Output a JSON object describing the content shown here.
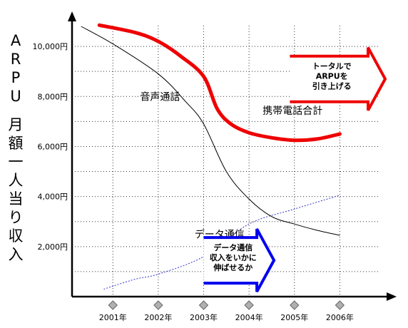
{
  "chart_data": {
    "type": "line",
    "ylabel_chars": [
      "A",
      "R",
      "P",
      "U",
      "",
      "月",
      "額",
      "一",
      "人",
      "当",
      "り",
      "収",
      "入"
    ],
    "ylim": [
      0,
      11000
    ],
    "y_ticks": [
      {
        "value": 2000,
        "label": "2,000円"
      },
      {
        "value": 4000,
        "label": "4,000円"
      },
      {
        "value": 6000,
        "label": "6,000円"
      },
      {
        "value": 8000,
        "label": "8,000円"
      },
      {
        "value": 10000,
        "label": "10,000円"
      }
    ],
    "minor_grid_values": [
      1000,
      3000,
      5000,
      7000,
      9000
    ],
    "x_ticks": [
      {
        "value": 2001,
        "label": "2001年"
      },
      {
        "value": 2002,
        "label": "2002年"
      },
      {
        "value": 2003,
        "label": "2003年"
      },
      {
        "value": 2004,
        "label": "2004年"
      },
      {
        "value": 2005,
        "label": "2005年"
      },
      {
        "value": 2006,
        "label": "2006年"
      }
    ],
    "xlim": [
      2000.1,
      2007.0
    ],
    "grid": true,
    "series": [
      {
        "name": "音声通話",
        "color": "#000000",
        "style": "solid-thin",
        "points": [
          [
            2000.3,
            10800
          ],
          [
            2001,
            10100
          ],
          [
            2002,
            8900
          ],
          [
            2002.6,
            7800
          ],
          [
            2003,
            6900
          ],
          [
            2003.5,
            5000
          ],
          [
            2004,
            3900
          ],
          [
            2004.5,
            3200
          ],
          [
            2005,
            2900
          ],
          [
            2005.5,
            2650
          ],
          [
            2006,
            2450
          ]
        ]
      },
      {
        "name": "データ通信",
        "color": "#3333cc",
        "style": "dashed",
        "points": [
          [
            2000.8,
            300
          ],
          [
            2001.5,
            700
          ],
          [
            2002,
            900
          ],
          [
            2003,
            1600
          ],
          [
            2004,
            2900
          ],
          [
            2005,
            3500
          ],
          [
            2006,
            4050
          ]
        ]
      },
      {
        "name": "携帯電話合計",
        "color": "#ee0000",
        "style": "solid-thick",
        "points": [
          [
            2000.7,
            10850
          ],
          [
            2001.5,
            10550
          ],
          [
            2002,
            10200
          ],
          [
            2002.5,
            9600
          ],
          [
            2003,
            8800
          ],
          [
            2003.3,
            7500
          ],
          [
            2003.6,
            6900
          ],
          [
            2004,
            6550
          ],
          [
            2004.5,
            6350
          ],
          [
            2005,
            6250
          ],
          [
            2005.5,
            6300
          ],
          [
            2006,
            6500
          ]
        ]
      }
    ],
    "series_labels": [
      {
        "text": "音声通話",
        "x": 2001.6,
        "y": 7850
      },
      {
        "text": "携帯電話合計",
        "x": 2004.3,
        "y": 7300
      },
      {
        "text": "データ通信",
        "x": 2002.8,
        "y": 2350
      }
    ],
    "annotations": [
      {
        "kind": "arrow",
        "color": "#ee0000",
        "x_from": 2004.9,
        "x_to": 2007.0,
        "y_center": 8700,
        "lines": [
          "トータルで",
          "ARPUを",
          "引き上げる"
        ]
      },
      {
        "kind": "arrow",
        "color": "#0000ee",
        "x_from": 2003.0,
        "x_to": 2004.55,
        "y_center": 1450,
        "lines": [
          "データ通信",
          "収入をいかに",
          "伸ばせるか"
        ]
      }
    ]
  }
}
